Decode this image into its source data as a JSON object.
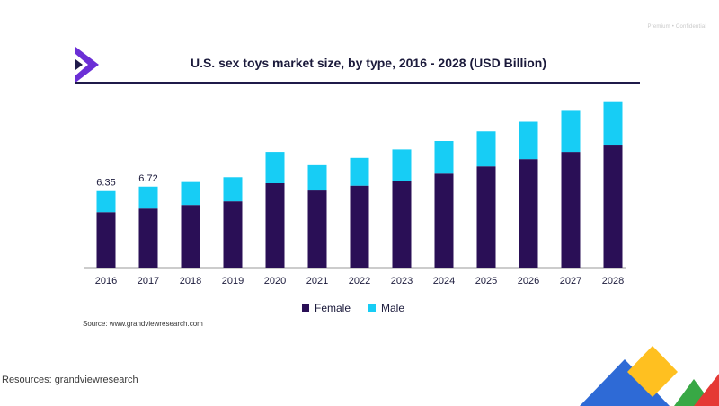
{
  "watermark": "Premium • Confidential",
  "footer": {
    "source": "Source: www.grandviewresearch.com",
    "resources": "Resources: grandviewresearch"
  },
  "colors": {
    "female": "#2a0f56",
    "male": "#17cdf5",
    "axis": "#9a9a9a",
    "text": "#1b1a3b"
  },
  "chart_data": {
    "type": "bar",
    "stacked": true,
    "title": "U.S. sex toys market size, by type, 2016 - 2028 (USD Billion)",
    "xlabel": "",
    "ylabel": "",
    "categories": [
      "2016",
      "2017",
      "2018",
      "2019",
      "2020",
      "2021",
      "2022",
      "2023",
      "2024",
      "2025",
      "2026",
      "2027",
      "2028"
    ],
    "series": [
      {
        "name": "Female",
        "values": [
          4.6,
          4.9,
          5.2,
          5.5,
          7.0,
          6.4,
          6.8,
          7.2,
          7.8,
          8.4,
          9.0,
          9.6,
          10.2
        ]
      },
      {
        "name": "Male",
        "values": [
          1.75,
          1.82,
          1.9,
          2.0,
          2.6,
          2.1,
          2.3,
          2.6,
          2.7,
          2.9,
          3.1,
          3.4,
          3.6
        ]
      }
    ],
    "data_labels": [
      {
        "category": "2016",
        "text": "6.35"
      },
      {
        "category": "2017",
        "text": "6.72"
      }
    ],
    "ylim": [
      0,
      14
    ],
    "grid": false,
    "legend": "bottom-center"
  }
}
